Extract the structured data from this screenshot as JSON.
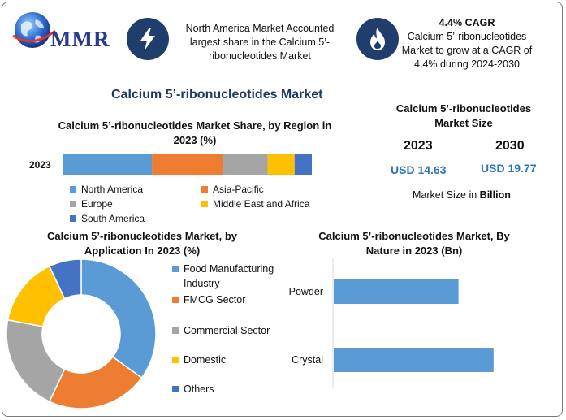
{
  "logo": {
    "text": "MMR",
    "icon": "globe-icon"
  },
  "info_box_1": {
    "icon": "lightning-icon",
    "text": "North America Market Accounted largest share in the Calcium 5’-ribonucleotides Market"
  },
  "info_box_2": {
    "icon": "flame-icon",
    "title": "4.4% CAGR",
    "text": "Calcium 5’-ribonucleotides Market to grow at a CAGR of 4.4% during 2024-2030"
  },
  "main_title": "Calcium 5’-ribonucleotides Market",
  "market_size": {
    "title": "Calcium 5’-ribonucleotides Market Size",
    "year1": "2023",
    "year2": "2030",
    "value1": "USD 14.63",
    "value2": "USD 19.77",
    "note_prefix": "Market Size in ",
    "note_bold": "Billion"
  },
  "colors": {
    "blue": "#5b9bd5",
    "orange": "#ed7d31",
    "gray": "#a5a5a5",
    "yellow": "#ffc000",
    "dark_blue": "#4472c4",
    "accent": "#1f3e6b"
  },
  "chart_data": [
    {
      "type": "bar",
      "orientation": "horizontal-stacked",
      "title": "Calcium 5’-ribonucleotides Market Share, by Region in 2023 (%)",
      "categories": [
        "2023"
      ],
      "series": [
        {
          "name": "North America",
          "values": [
            36
          ],
          "color": "#5b9bd5"
        },
        {
          "name": "Asia-Pacific",
          "values": [
            29
          ],
          "color": "#ed7d31"
        },
        {
          "name": "Europe",
          "values": [
            18
          ],
          "color": "#a5a5a5"
        },
        {
          "name": "Middle East and Africa",
          "values": [
            11
          ],
          "color": "#ffc000"
        },
        {
          "name": "South America",
          "values": [
            7
          ],
          "color": "#4472c4"
        }
      ],
      "grid": false,
      "legend": "bottom"
    },
    {
      "type": "pie",
      "variant": "donut",
      "title": "Calcium 5’-ribonucleotides Market, by Application In 2023 (%)",
      "slices": [
        {
          "name": "Food Manufacturing Industry",
          "value": 35,
          "color": "#5b9bd5"
        },
        {
          "name": "FMCG Sector",
          "value": 22,
          "color": "#ed7d31"
        },
        {
          "name": "Commercial Sector",
          "value": 21,
          "color": "#a5a5a5"
        },
        {
          "name": "Domestic",
          "value": 15,
          "color": "#ffc000"
        },
        {
          "name": "Others",
          "value": 7,
          "color": "#4472c4"
        }
      ],
      "legend": "right"
    },
    {
      "type": "bar",
      "orientation": "horizontal",
      "title": "Calcium 5’-ribonucleotides Market, By Nature in 2023 (Bn)",
      "categories": [
        "Powder",
        "Crystal"
      ],
      "values": [
        6.4,
        8.2
      ],
      "xlim": [
        0,
        10
      ],
      "color": "#5b9bd5",
      "grid": false
    }
  ]
}
